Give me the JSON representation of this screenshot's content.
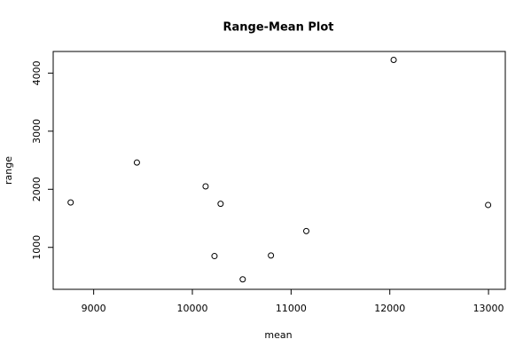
{
  "chart_data": {
    "type": "scatter",
    "title": "Range-Mean Plot",
    "x_label": "mean",
    "y_label": "range",
    "series": [
      {
        "name": null,
        "color": "#000000",
        "x": [
          8767,
          9438,
          10134,
          10286,
          10224,
          10510,
          10796,
          11154,
          12039,
          12996
        ],
        "values": [
          1773,
          2460,
          2050,
          1750,
          850,
          450,
          860,
          1280,
          4227,
          1730
        ]
      }
    ],
    "xlim": [
      8590,
      13170
    ],
    "ylim": [
      278,
      4372
    ],
    "xticks": [
      9000,
      10000,
      11000,
      12000,
      13000
    ],
    "yticks": [
      1000,
      2000,
      3000,
      4000
    ],
    "grid": false
  }
}
